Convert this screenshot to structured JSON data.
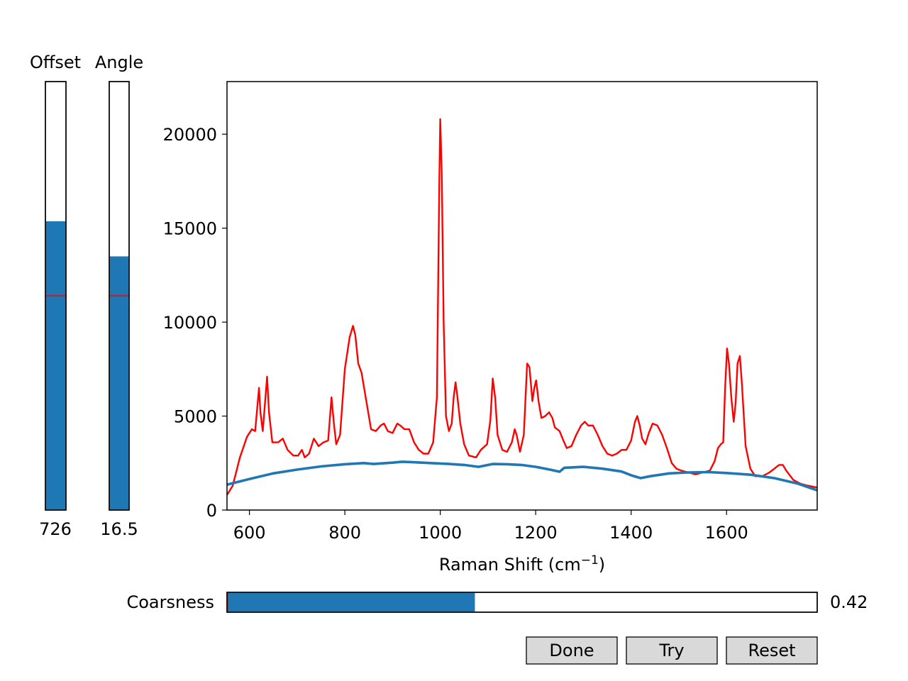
{
  "window": {
    "background": "#ffffff"
  },
  "sliders": {
    "offset": {
      "label": "Offset",
      "value_text": "726",
      "fraction": 0.674,
      "initial_fraction": 0.5
    },
    "angle": {
      "label": "Angle",
      "value_text": "16.5",
      "fraction": 0.592,
      "initial_fraction": 0.5
    },
    "coarseness": {
      "label": "Coarsness",
      "value_text": "0.42",
      "fraction": 0.42,
      "initial_fraction": 0.0
    },
    "fill_color": "#1f77b4",
    "marker_color": "#ff0000"
  },
  "buttons": {
    "done_label": "Done",
    "try_label": "Try",
    "reset_label": "Reset",
    "face_color": "#d9d9d9"
  },
  "chart_data": {
    "type": "line",
    "title": "",
    "xlabel": "Raman Shift (cm",
    "xlabel_sup": "−1",
    "xlabel_end": ")",
    "ylabel": "",
    "xlim": [
      553,
      1790
    ],
    "ylim": [
      0,
      22800
    ],
    "x_ticks": [
      600,
      800,
      1000,
      1200,
      1400,
      1600
    ],
    "y_ticks": [
      0,
      5000,
      10000,
      15000,
      20000
    ],
    "grid": false,
    "series": [
      {
        "color": "#ff0000",
        "width": 2.4,
        "points": [
          [
            553,
            800
          ],
          [
            565,
            1300
          ],
          [
            580,
            2800
          ],
          [
            595,
            3900
          ],
          [
            605,
            4300
          ],
          [
            612,
            4200
          ],
          [
            617,
            5600
          ],
          [
            620,
            6500
          ],
          [
            623,
            5200
          ],
          [
            628,
            4200
          ],
          [
            633,
            5800
          ],
          [
            637,
            7100
          ],
          [
            641,
            5200
          ],
          [
            648,
            3600
          ],
          [
            660,
            3600
          ],
          [
            670,
            3800
          ],
          [
            680,
            3200
          ],
          [
            692,
            2900
          ],
          [
            702,
            2900
          ],
          [
            710,
            3200
          ],
          [
            716,
            2800
          ],
          [
            725,
            3000
          ],
          [
            735,
            3800
          ],
          [
            745,
            3400
          ],
          [
            755,
            3600
          ],
          [
            765,
            3700
          ],
          [
            772,
            6000
          ],
          [
            777,
            4600
          ],
          [
            782,
            3500
          ],
          [
            790,
            4000
          ],
          [
            800,
            7500
          ],
          [
            810,
            9200
          ],
          [
            817,
            9800
          ],
          [
            822,
            9300
          ],
          [
            828,
            7800
          ],
          [
            835,
            7300
          ],
          [
            845,
            5800
          ],
          [
            855,
            4300
          ],
          [
            865,
            4200
          ],
          [
            875,
            4500
          ],
          [
            882,
            4600
          ],
          [
            890,
            4200
          ],
          [
            900,
            4100
          ],
          [
            910,
            4600
          ],
          [
            916,
            4500
          ],
          [
            925,
            4300
          ],
          [
            935,
            4300
          ],
          [
            945,
            3600
          ],
          [
            955,
            3200
          ],
          [
            965,
            3000
          ],
          [
            975,
            3000
          ],
          [
            985,
            3600
          ],
          [
            993,
            6000
          ],
          [
            998,
            17500
          ],
          [
            1000,
            20800
          ],
          [
            1003,
            18000
          ],
          [
            1007,
            10000
          ],
          [
            1012,
            5000
          ],
          [
            1018,
            4200
          ],
          [
            1024,
            4600
          ],
          [
            1028,
            6000
          ],
          [
            1032,
            6800
          ],
          [
            1036,
            6000
          ],
          [
            1042,
            4600
          ],
          [
            1050,
            3500
          ],
          [
            1060,
            2900
          ],
          [
            1075,
            2800
          ],
          [
            1085,
            3200
          ],
          [
            1098,
            3500
          ],
          [
            1105,
            4800
          ],
          [
            1110,
            7000
          ],
          [
            1115,
            6000
          ],
          [
            1120,
            4000
          ],
          [
            1130,
            3200
          ],
          [
            1140,
            3100
          ],
          [
            1150,
            3600
          ],
          [
            1156,
            4300
          ],
          [
            1160,
            4000
          ],
          [
            1167,
            3100
          ],
          [
            1175,
            4000
          ],
          [
            1182,
            7800
          ],
          [
            1187,
            7600
          ],
          [
            1193,
            5800
          ],
          [
            1197,
            6500
          ],
          [
            1201,
            6900
          ],
          [
            1206,
            5800
          ],
          [
            1212,
            4900
          ],
          [
            1220,
            5000
          ],
          [
            1228,
            5200
          ],
          [
            1235,
            4900
          ],
          [
            1240,
            4400
          ],
          [
            1250,
            4200
          ],
          [
            1258,
            3700
          ],
          [
            1265,
            3300
          ],
          [
            1275,
            3400
          ],
          [
            1285,
            4000
          ],
          [
            1295,
            4500
          ],
          [
            1303,
            4700
          ],
          [
            1310,
            4500
          ],
          [
            1320,
            4500
          ],
          [
            1330,
            4000
          ],
          [
            1340,
            3400
          ],
          [
            1350,
            3000
          ],
          [
            1360,
            2900
          ],
          [
            1370,
            3000
          ],
          [
            1380,
            3200
          ],
          [
            1390,
            3200
          ],
          [
            1400,
            3700
          ],
          [
            1408,
            4700
          ],
          [
            1413,
            5000
          ],
          [
            1418,
            4500
          ],
          [
            1423,
            3800
          ],
          [
            1430,
            3500
          ],
          [
            1437,
            4100
          ],
          [
            1445,
            4600
          ],
          [
            1455,
            4500
          ],
          [
            1465,
            4000
          ],
          [
            1475,
            3300
          ],
          [
            1485,
            2500
          ],
          [
            1495,
            2200
          ],
          [
            1505,
            2100
          ],
          [
            1520,
            2000
          ],
          [
            1535,
            1900
          ],
          [
            1550,
            2000
          ],
          [
            1565,
            2100
          ],
          [
            1575,
            2600
          ],
          [
            1582,
            3300
          ],
          [
            1588,
            3500
          ],
          [
            1593,
            3600
          ],
          [
            1597,
            6500
          ],
          [
            1601,
            8600
          ],
          [
            1605,
            7800
          ],
          [
            1610,
            6000
          ],
          [
            1615,
            4700
          ],
          [
            1619,
            5700
          ],
          [
            1623,
            7800
          ],
          [
            1628,
            8200
          ],
          [
            1632,
            6800
          ],
          [
            1640,
            3400
          ],
          [
            1650,
            2200
          ],
          [
            1660,
            1800
          ],
          [
            1675,
            1800
          ],
          [
            1690,
            2000
          ],
          [
            1700,
            2200
          ],
          [
            1710,
            2400
          ],
          [
            1718,
            2400
          ],
          [
            1725,
            2100
          ],
          [
            1740,
            1600
          ],
          [
            1755,
            1400
          ],
          [
            1770,
            1300
          ],
          [
            1790,
            1200
          ]
        ]
      },
      {
        "color": "#1f77b4",
        "width": 3.6,
        "points": [
          [
            553,
            1350
          ],
          [
            600,
            1650
          ],
          [
            650,
            1950
          ],
          [
            700,
            2150
          ],
          [
            750,
            2320
          ],
          [
            800,
            2440
          ],
          [
            840,
            2500
          ],
          [
            860,
            2450
          ],
          [
            900,
            2520
          ],
          [
            920,
            2570
          ],
          [
            940,
            2550
          ],
          [
            980,
            2500
          ],
          [
            1020,
            2450
          ],
          [
            1050,
            2400
          ],
          [
            1080,
            2300
          ],
          [
            1110,
            2450
          ],
          [
            1140,
            2440
          ],
          [
            1170,
            2400
          ],
          [
            1200,
            2300
          ],
          [
            1230,
            2150
          ],
          [
            1250,
            2040
          ],
          [
            1260,
            2250
          ],
          [
            1300,
            2300
          ],
          [
            1340,
            2200
          ],
          [
            1380,
            2050
          ],
          [
            1400,
            1850
          ],
          [
            1420,
            1700
          ],
          [
            1440,
            1800
          ],
          [
            1480,
            1950
          ],
          [
            1520,
            2000
          ],
          [
            1560,
            2020
          ],
          [
            1600,
            1970
          ],
          [
            1650,
            1880
          ],
          [
            1700,
            1700
          ],
          [
            1750,
            1400
          ],
          [
            1790,
            1050
          ]
        ]
      }
    ]
  }
}
